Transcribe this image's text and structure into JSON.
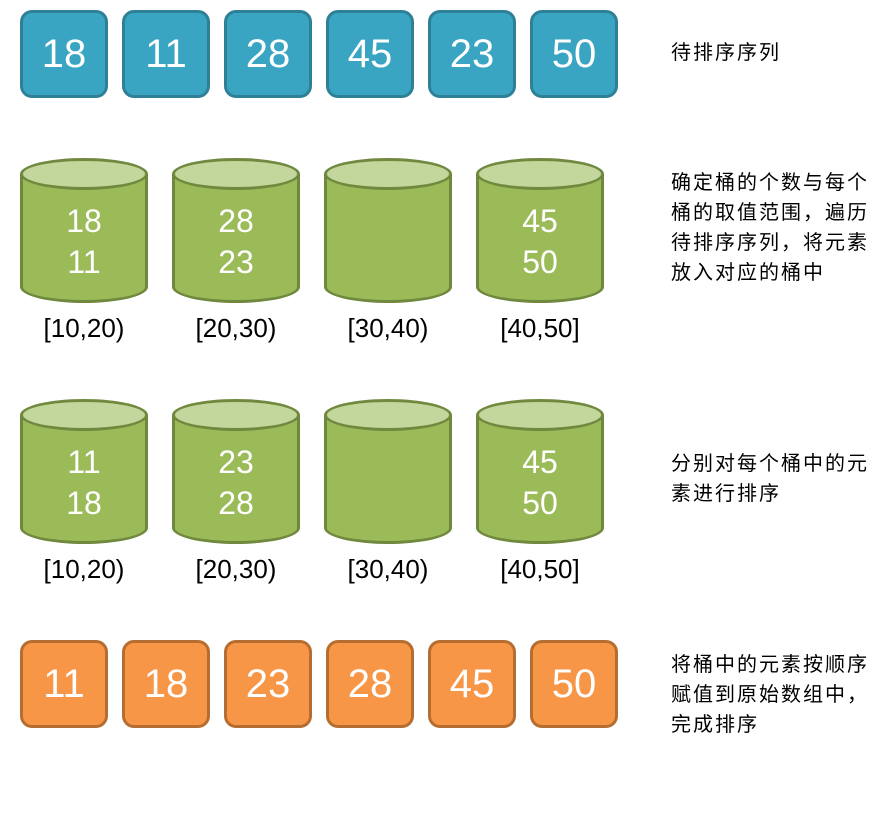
{
  "colors": {
    "blue_fill": "#3aa5c2",
    "blue_border": "#2e8096",
    "green_body": "#9bbb59",
    "green_top": "#c3d69b",
    "green_border": "#71893f",
    "orange_fill": "#f79646",
    "orange_border": "#b66d31",
    "text": "#000000",
    "value_text": "#ffffff",
    "background": "#ffffff"
  },
  "sizes": {
    "box_side": 88,
    "box_radius": 12,
    "box_border": 3,
    "box_font": 40,
    "bucket_w": 128,
    "bucket_h": 145,
    "bucket_ellipse_h": 32,
    "bucket_val_font": 32,
    "bucket_label_font": 26,
    "desc_font": 20
  },
  "row1": {
    "values": [
      "18",
      "11",
      "28",
      "45",
      "23",
      "50"
    ],
    "desc": "待排序序列"
  },
  "row2": {
    "buckets": [
      {
        "vals": [
          "18",
          "11"
        ],
        "label": "[10,20)"
      },
      {
        "vals": [
          "28",
          "23"
        ],
        "label": "[20,30)"
      },
      {
        "vals": [],
        "label": "[30,40)"
      },
      {
        "vals": [
          "45",
          "50"
        ],
        "label": "[40,50]"
      }
    ],
    "desc": "确定桶的个数与每个桶的取值范围，遍历待排序序列，将元素放入对应的桶中"
  },
  "row3": {
    "buckets": [
      {
        "vals": [
          "11",
          "18"
        ],
        "label": "[10,20)"
      },
      {
        "vals": [
          "23",
          "28"
        ],
        "label": "[20,30)"
      },
      {
        "vals": [],
        "label": "[30,40)"
      },
      {
        "vals": [
          "45",
          "50"
        ],
        "label": "[40,50]"
      }
    ],
    "desc": "分别对每个桶中的元素进行排序"
  },
  "row4": {
    "values": [
      "11",
      "18",
      "23",
      "28",
      "45",
      "50"
    ],
    "desc": "将桶中的元素按顺序赋值到原始数组中，完成排序"
  }
}
